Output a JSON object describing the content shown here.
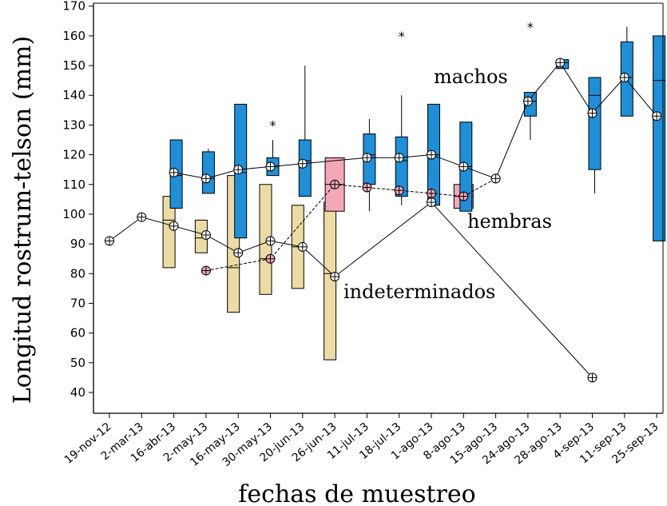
{
  "chart_data": {
    "type": "box",
    "xlabel": "fechas de muestreo",
    "ylabel": "Longitud rostrum-telson (mm)",
    "ylim": [
      33,
      171
    ],
    "yticks": [
      40,
      50,
      60,
      70,
      80,
      90,
      100,
      110,
      120,
      130,
      140,
      150,
      160,
      170
    ],
    "categories": [
      "19-nov-12",
      "2-mar-13",
      "16-abr-13",
      "2-may-13",
      "16-may-13",
      "30-may-13",
      "20-jun-13",
      "26-jun-13",
      "11-jul-13",
      "18-jul-13",
      "1-ago-13",
      "8-ago-13",
      "15-ago-13",
      "24-ago-13",
      "28-ago-13",
      "4-sep-13",
      "11-sep-13",
      "25-sep-13"
    ],
    "colors": {
      "machos": "#1e8fd8",
      "hembras": "#f4a7b9",
      "indeterminados": "#ecdca4"
    },
    "series": [
      {
        "name": "machos",
        "boxes": [
          {
            "i": 2,
            "q1": 102,
            "med": 113,
            "q3": 125
          },
          {
            "i": 3,
            "q1": 107,
            "med": 112,
            "q3": 121,
            "whi": 122
          },
          {
            "i": 4,
            "q1": 92,
            "med": 114,
            "q3": 137
          },
          {
            "i": 5,
            "q1": 113,
            "med": 116,
            "q3": 119,
            "whi": 125
          },
          {
            "i": 6,
            "q1": 106,
            "med": 118,
            "q3": 125,
            "whi": 150
          },
          {
            "i": 8,
            "q1": 110,
            "med": 120,
            "q3": 127,
            "wlo": 101,
            "whi": 132
          },
          {
            "i": 9,
            "q1": 106,
            "med": 118,
            "q3": 126,
            "wlo": 103,
            "whi": 140
          },
          {
            "i": 10,
            "q1": 103,
            "med": 120,
            "q3": 137
          },
          {
            "i": 11,
            "q1": 101,
            "med": 116,
            "q3": 131
          },
          {
            "i": 13,
            "q1": 133,
            "med": 138,
            "q3": 141,
            "wlo": 125
          },
          {
            "i": 14,
            "q1": 149,
            "med": 151,
            "q3": 152
          },
          {
            "i": 15,
            "q1": 115,
            "med": 140,
            "q3": 146,
            "wlo": 107
          },
          {
            "i": 16,
            "q1": 133,
            "med": 146,
            "q3": 158,
            "whi": 163
          },
          {
            "i": 17,
            "q1": 91,
            "med": 145,
            "q3": 160
          }
        ],
        "means": [
          [
            2,
            114
          ],
          [
            3,
            112
          ],
          [
            4,
            115
          ],
          [
            5,
            116
          ],
          [
            6,
            117
          ],
          [
            8,
            119
          ],
          [
            9,
            119
          ],
          [
            10,
            120
          ],
          [
            11,
            116
          ],
          [
            12,
            112
          ],
          [
            13,
            138
          ],
          [
            14,
            151
          ],
          [
            15,
            134
          ],
          [
            16,
            146
          ],
          [
            17,
            133
          ]
        ],
        "outliers": [
          [
            5,
            130
          ],
          [
            9,
            160
          ],
          [
            13,
            163
          ]
        ]
      },
      {
        "name": "hembras",
        "boxes": [
          {
            "i": 7,
            "q1": 101,
            "med": 110,
            "q3": 119
          },
          {
            "i": 11,
            "q1": 102,
            "med": 106,
            "q3": 110
          }
        ],
        "means": [
          [
            3,
            81
          ],
          [
            5,
            85
          ],
          [
            7,
            110
          ],
          [
            8,
            109
          ],
          [
            9,
            108
          ],
          [
            10,
            107
          ],
          [
            11,
            106
          ],
          [
            12,
            112
          ]
        ],
        "outliers": []
      },
      {
        "name": "indeterminados",
        "boxes": [
          {
            "i": 2,
            "q1": 82,
            "med": 98,
            "q3": 106
          },
          {
            "i": 3,
            "q1": 87,
            "med": 92,
            "q3": 98
          },
          {
            "i": 4,
            "q1": 67,
            "med": 82,
            "q3": 113
          },
          {
            "i": 5,
            "q1": 73,
            "med": 85,
            "q3": 110
          },
          {
            "i": 6,
            "q1": 75,
            "med": 89,
            "q3": 103
          },
          {
            "i": 7,
            "q1": 51,
            "med": 80,
            "q3": 104
          }
        ],
        "means": [
          [
            0,
            91
          ],
          [
            1,
            99
          ],
          [
            2,
            96
          ],
          [
            3,
            93
          ],
          [
            4,
            87
          ],
          [
            5,
            91
          ],
          [
            6,
            89
          ],
          [
            7,
            79
          ],
          [
            10,
            104
          ],
          [
            15,
            45
          ]
        ],
        "outliers": []
      }
    ],
    "labels": [
      {
        "text": "machos",
        "series": "machos"
      },
      {
        "text": "hembras",
        "series": "hembras"
      },
      {
        "text": "indeterminados",
        "series": "indeterminados"
      }
    ]
  }
}
